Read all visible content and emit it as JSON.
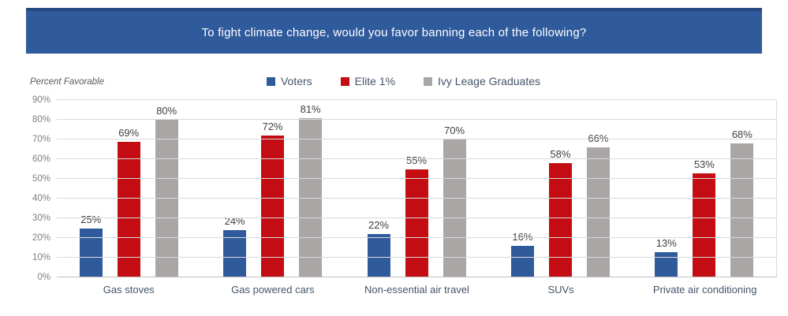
{
  "banner": {
    "title": "To fight climate change, would you favor banning each of the following?"
  },
  "colors": {
    "banner_bg": "#2F5A9C",
    "banner_border": "#27497F",
    "gridline": "#D9D9D9",
    "baseline": "#BFBFBF",
    "tick_text": "#7F7F7F",
    "data_label_text": "#404040",
    "category_text": "#44546A"
  },
  "chart_data": {
    "type": "bar",
    "title": "To fight climate change, would you favor banning each of the following?",
    "ylabel": "Percent Favorable",
    "xlabel": "",
    "categories": [
      "Gas stoves",
      "Gas powered cars",
      "Non-essential air travel",
      "SUVs",
      "Private air conditioning"
    ],
    "series": [
      {
        "name": "Voters",
        "color": "#2F5B9D",
        "values": [
          25,
          24,
          22,
          16,
          13
        ]
      },
      {
        "name": "Elite 1%",
        "color": "#C40D13",
        "values": [
          69,
          72,
          55,
          58,
          53
        ]
      },
      {
        "name": "Ivy Leage Graduates",
        "color": "#ABA6A6",
        "values": [
          80,
          81,
          70,
          66,
          68
        ]
      }
    ],
    "value_suffix": "%",
    "ylim": [
      0,
      90
    ],
    "yticks": [
      "0%",
      "10%",
      "20%",
      "30%",
      "40%",
      "50%",
      "60%",
      "70%",
      "80%",
      "90%"
    ],
    "grid": true,
    "legend_position": "top",
    "data_labels": true
  }
}
